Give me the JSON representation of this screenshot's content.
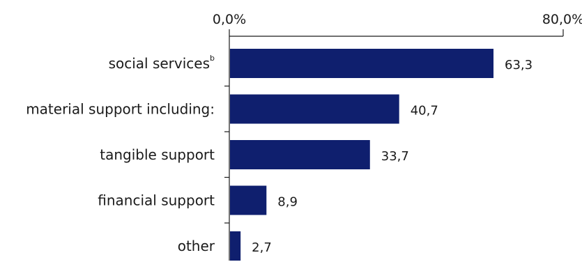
{
  "chart_data": {
    "type": "bar",
    "orientation": "horizontal",
    "categories": [
      "social services",
      "material support including:",
      "tangible support",
      "financial support",
      "other"
    ],
    "category_superscripts": [
      "b",
      "",
      "",
      "",
      ""
    ],
    "values": [
      63.3,
      40.7,
      33.7,
      8.9,
      2.7
    ],
    "value_labels": [
      "63,3",
      "40,7",
      "33,7",
      "8,9",
      "2,7"
    ],
    "xlim": [
      0,
      80
    ],
    "x_tick_labels": [
      "0,0%",
      "80,0%"
    ],
    "x_tick_values": [
      0,
      80
    ],
    "x_axis_position": "top",
    "grid": false,
    "legend": "none",
    "colors": {
      "bar": "#0f1f6e",
      "axis": "#1a1a1a",
      "text": "#1a1a1a"
    }
  }
}
